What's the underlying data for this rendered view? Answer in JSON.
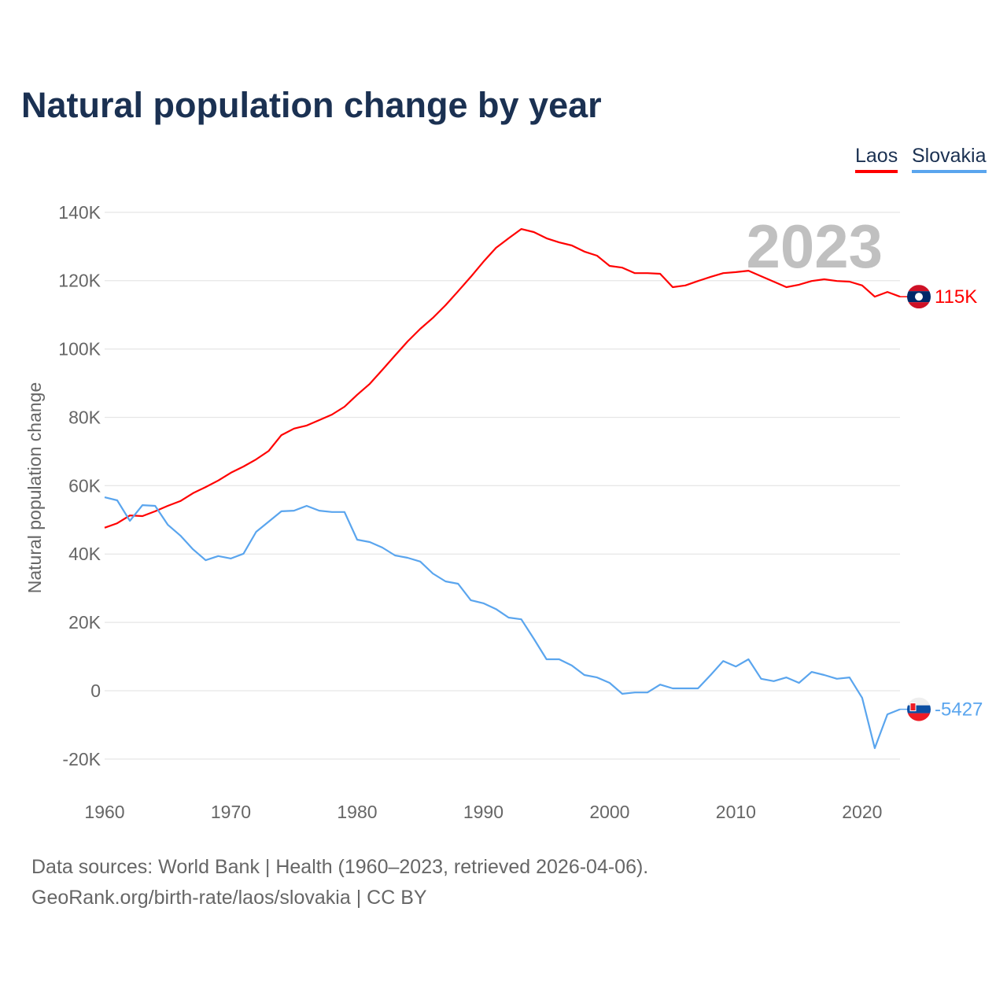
{
  "title": "Natural population change by year",
  "legend": [
    "Laos",
    "Slovakia"
  ],
  "footer": {
    "line1": "Data sources: World Bank | Health (1960–2023, retrieved 2026-04-06).",
    "line2": "GeoRank.org/birth-rate/laos/slovakia | CC BY"
  },
  "chart_data": {
    "type": "line",
    "title": "Natural population change by year",
    "xlabel": "",
    "ylabel": "Natural population change",
    "xlim": [
      1960,
      2023
    ],
    "ylim": [
      -30000,
      145000
    ],
    "yticks": [
      -20000,
      0,
      20000,
      40000,
      60000,
      80000,
      100000,
      120000,
      140000
    ],
    "ytick_labels": [
      "-20K",
      "0",
      "20K",
      "40K",
      "60K",
      "80K",
      "100K",
      "120K",
      "140K"
    ],
    "xticks": [
      1960,
      1970,
      1980,
      1990,
      2000,
      2010,
      2020
    ],
    "xtick_labels": [
      "1960",
      "1970",
      "1980",
      "1990",
      "2000",
      "2010",
      "2020"
    ],
    "grid": true,
    "legend_position": "top-right",
    "year_watermark": "2023",
    "x_start": 1960,
    "series": [
      {
        "name": "Laos",
        "color": "#ff0000",
        "end_label": "115K",
        "values": [
          47700,
          49000,
          51300,
          51100,
          52500,
          54100,
          55500,
          57800,
          59600,
          61500,
          63800,
          65600,
          67700,
          70200,
          74800,
          76700,
          77600,
          79200,
          80800,
          83100,
          86600,
          89800,
          93900,
          98100,
          102200,
          105900,
          109100,
          112800,
          116900,
          121100,
          125500,
          129600,
          132400,
          135100,
          134200,
          132400,
          131200,
          130300,
          128500,
          127300,
          124300,
          123800,
          122200,
          122200,
          122000,
          118100,
          118600,
          119900,
          121100,
          122200,
          122500,
          122900,
          121300,
          119700,
          118100,
          118800,
          119900,
          120400,
          119900,
          119700,
          118600,
          115300,
          116700,
          115300
        ]
      },
      {
        "name": "Slovakia",
        "color": "#5aa5ee",
        "end_label": "-5427",
        "values": [
          56600,
          55700,
          49700,
          54300,
          54100,
          48600,
          45400,
          41400,
          38200,
          39400,
          38700,
          40100,
          46500,
          49500,
          52500,
          52700,
          54100,
          52700,
          52300,
          52300,
          44200,
          43500,
          41900,
          39600,
          38900,
          37800,
          34300,
          32000,
          31300,
          26500,
          25600,
          23900,
          21400,
          20900,
          15200,
          9200,
          9200,
          7400,
          4600,
          3900,
          2300,
          -900,
          -500,
          -500,
          1800,
          700,
          700,
          700,
          4600,
          8700,
          7100,
          9200,
          3500,
          2800,
          3900,
          2300,
          5500,
          4600,
          3500,
          3900,
          -2100,
          -16800,
          -6900,
          -5427
        ]
      }
    ]
  }
}
